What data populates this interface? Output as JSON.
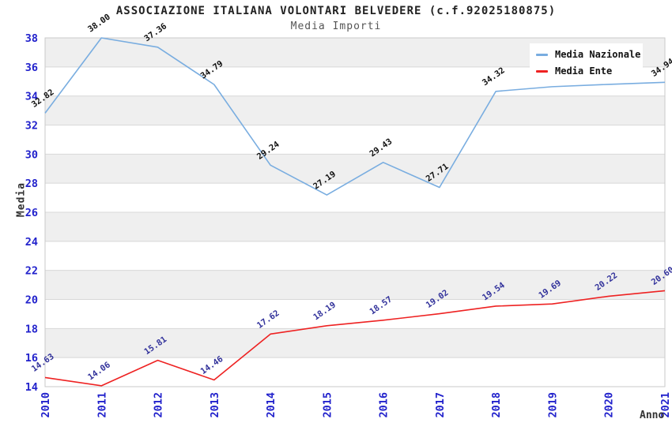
{
  "header": {
    "title": "ASSOCIAZIONE ITALIANA VOLONTARI BELVEDERE (c.f.92025180875)",
    "subtitle": "Media Importi"
  },
  "axes": {
    "y_label": "Media",
    "x_label": "Anno",
    "y_ticks": [
      14,
      16,
      18,
      20,
      22,
      24,
      26,
      28,
      30,
      32,
      34,
      36,
      38
    ],
    "tick_color": "#2222cc"
  },
  "legend": {
    "position": "top-right",
    "background": "#ffffff"
  },
  "colors": {
    "plot_border": "#c9c9c9",
    "gridline": "#d8d8d8",
    "band_gray": "#efefef",
    "band_white": "#ffffff",
    "nazionale_line": "#79ade0",
    "ente_line": "#ee2222",
    "nazionale_label_text": "#111111",
    "ente_label_text": "#32329b"
  },
  "chart_data": {
    "type": "line",
    "title": "ASSOCIAZIONE ITALIANA VOLONTARI BELVEDERE (c.f.92025180875)",
    "subtitle": "Media Importi",
    "xlabel": "Anno",
    "ylabel": "Media",
    "ylim": [
      14,
      38
    ],
    "grid": "horizontal-only, alternating gray/white bands",
    "legend_position": "top-right",
    "categories": [
      "2010",
      "2011",
      "2012",
      "2013",
      "2014",
      "2015",
      "2016",
      "2017",
      "2018",
      "2019",
      "2020",
      "2021"
    ],
    "series": [
      {
        "name": "Media Nazionale",
        "color": "#79ade0",
        "label_color": "#111111",
        "values": [
          32.82,
          38.0,
          37.36,
          34.79,
          29.24,
          27.19,
          29.43,
          27.71,
          34.32,
          34.64,
          34.8,
          34.94
        ]
      },
      {
        "name": "Media Ente",
        "color": "#ee2222",
        "label_color": "#32329b",
        "values": [
          14.63,
          14.06,
          15.81,
          14.46,
          17.62,
          18.19,
          18.57,
          19.02,
          19.54,
          19.69,
          20.22,
          20.6
        ]
      }
    ]
  }
}
